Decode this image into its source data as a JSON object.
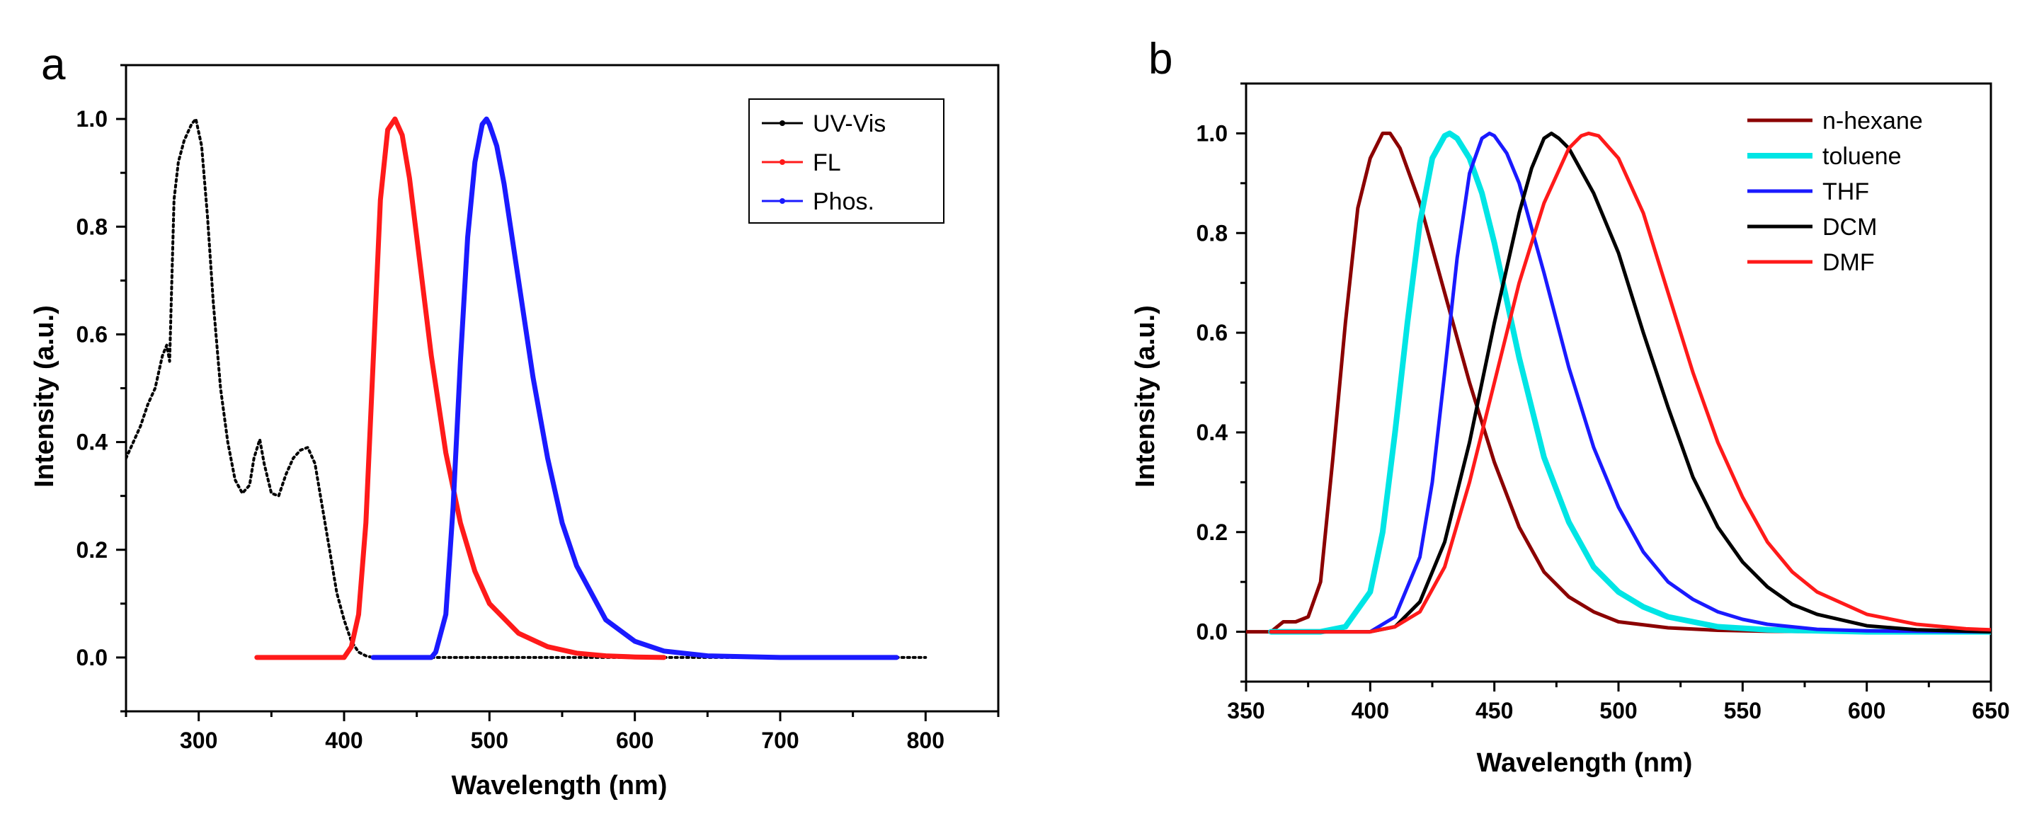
{
  "chart_data": [
    {
      "panel": "a",
      "type": "line",
      "xlabel": "Wavelength (nm)",
      "ylabel": "Intensity (a.u.)",
      "xlim": [
        250,
        850
      ],
      "ylim": [
        -0.1,
        1.1
      ],
      "xticks": [
        300,
        400,
        500,
        600,
        700,
        800
      ],
      "yticks": [
        0.0,
        0.2,
        0.4,
        0.6,
        0.8,
        1.0
      ],
      "grid": false,
      "legend_position": "top-right",
      "series": [
        {
          "name": "UV-Vis",
          "color": "#000000",
          "marker": "dot",
          "x": [
            250,
            255,
            260,
            265,
            270,
            275,
            278,
            280,
            283,
            286,
            290,
            295,
            298,
            302,
            306,
            310,
            315,
            320,
            325,
            330,
            335,
            338,
            342,
            345,
            350,
            355,
            360,
            365,
            370,
            375,
            380,
            385,
            390,
            395,
            400,
            405,
            410,
            415,
            420,
            430,
            450,
            500,
            550,
            600,
            650,
            700,
            750,
            800
          ],
          "y": [
            0.37,
            0.4,
            0.43,
            0.47,
            0.5,
            0.56,
            0.58,
            0.55,
            0.85,
            0.92,
            0.96,
            0.99,
            1.0,
            0.95,
            0.82,
            0.66,
            0.5,
            0.4,
            0.33,
            0.305,
            0.32,
            0.37,
            0.405,
            0.36,
            0.305,
            0.3,
            0.34,
            0.37,
            0.385,
            0.39,
            0.36,
            0.28,
            0.2,
            0.12,
            0.07,
            0.03,
            0.01,
            0.003,
            0.0,
            0.0,
            0.0,
            0.0,
            0.0,
            0.0,
            0.0,
            0.0,
            0.0,
            0.0
          ]
        },
        {
          "name": "FL",
          "color": "#ff1a1a",
          "marker": "dot",
          "x": [
            340,
            380,
            400,
            405,
            410,
            415,
            420,
            425,
            430,
            435,
            440,
            445,
            450,
            460,
            470,
            480,
            490,
            500,
            520,
            540,
            560,
            580,
            600,
            620
          ],
          "y": [
            0.0,
            0.0,
            0.0,
            0.02,
            0.08,
            0.25,
            0.55,
            0.85,
            0.98,
            1.0,
            0.97,
            0.89,
            0.78,
            0.56,
            0.38,
            0.25,
            0.16,
            0.1,
            0.045,
            0.02,
            0.008,
            0.003,
            0.001,
            0.0
          ]
        },
        {
          "name": "Phos.",
          "color": "#1a1aff",
          "marker": "dot",
          "x": [
            420,
            460,
            463,
            470,
            475,
            480,
            485,
            490,
            495,
            498,
            500,
            505,
            510,
            520,
            530,
            540,
            550,
            560,
            580,
            600,
            620,
            650,
            700,
            780
          ],
          "y": [
            0.0,
            0.0,
            0.01,
            0.08,
            0.28,
            0.55,
            0.78,
            0.92,
            0.99,
            1.0,
            0.99,
            0.95,
            0.88,
            0.7,
            0.52,
            0.37,
            0.25,
            0.17,
            0.07,
            0.03,
            0.012,
            0.003,
            0.0,
            0.0
          ]
        }
      ]
    },
    {
      "panel": "b",
      "type": "line",
      "xlabel": "Wavelength (nm)",
      "ylabel": "Intensity (a.u.)",
      "xlim": [
        350,
        650
      ],
      "ylim": [
        -0.1,
        1.1
      ],
      "xticks": [
        350,
        400,
        450,
        500,
        550,
        600,
        650
      ],
      "yticks": [
        0.0,
        0.2,
        0.4,
        0.6,
        0.8,
        1.0
      ],
      "grid": false,
      "legend_position": "top-right",
      "series": [
        {
          "name": "n-hexane",
          "color": "#8b0000",
          "x": [
            350,
            360,
            365,
            370,
            375,
            380,
            385,
            390,
            395,
            400,
            405,
            408,
            412,
            420,
            430,
            440,
            450,
            460,
            470,
            480,
            490,
            500,
            520,
            540,
            560,
            600,
            650
          ],
          "y": [
            0.0,
            0.0,
            0.02,
            0.02,
            0.03,
            0.1,
            0.35,
            0.62,
            0.85,
            0.95,
            1.0,
            1.0,
            0.97,
            0.86,
            0.68,
            0.5,
            0.34,
            0.21,
            0.12,
            0.07,
            0.04,
            0.02,
            0.008,
            0.003,
            0.001,
            0.0,
            0.0
          ]
        },
        {
          "name": "toluene",
          "color": "#00e5e5",
          "x": [
            360,
            380,
            390,
            400,
            405,
            410,
            415,
            420,
            425,
            430,
            432,
            435,
            440,
            445,
            450,
            460,
            470,
            480,
            490,
            500,
            510,
            520,
            540,
            560,
            600,
            650
          ],
          "y": [
            0.0,
            0.0,
            0.01,
            0.08,
            0.2,
            0.4,
            0.62,
            0.82,
            0.95,
            0.995,
            1.0,
            0.99,
            0.95,
            0.88,
            0.78,
            0.55,
            0.35,
            0.22,
            0.13,
            0.08,
            0.05,
            0.03,
            0.01,
            0.004,
            0.0,
            0.0
          ]
        },
        {
          "name": "THF",
          "color": "#1a1aff",
          "x": [
            360,
            400,
            410,
            420,
            425,
            430,
            435,
            440,
            445,
            448,
            450,
            455,
            460,
            470,
            480,
            490,
            500,
            510,
            520,
            530,
            540,
            550,
            560,
            580,
            600,
            650
          ],
          "y": [
            0.0,
            0.0,
            0.03,
            0.15,
            0.3,
            0.52,
            0.75,
            0.92,
            0.99,
            1.0,
            0.995,
            0.96,
            0.9,
            0.72,
            0.53,
            0.37,
            0.25,
            0.16,
            0.1,
            0.065,
            0.04,
            0.025,
            0.015,
            0.005,
            0.002,
            0.0
          ]
        },
        {
          "name": "DCM",
          "color": "#000000",
          "x": [
            360,
            400,
            410,
            420,
            430,
            440,
            450,
            460,
            465,
            470,
            473,
            476,
            480,
            490,
            500,
            510,
            520,
            530,
            540,
            550,
            560,
            570,
            580,
            600,
            620,
            650
          ],
          "y": [
            0.0,
            0.0,
            0.01,
            0.06,
            0.18,
            0.38,
            0.62,
            0.84,
            0.93,
            0.99,
            1.0,
            0.99,
            0.97,
            0.88,
            0.76,
            0.6,
            0.45,
            0.31,
            0.21,
            0.14,
            0.09,
            0.055,
            0.035,
            0.012,
            0.004,
            0.0
          ]
        },
        {
          "name": "DMF",
          "color": "#ff1a1a",
          "x": [
            360,
            400,
            410,
            420,
            430,
            440,
            450,
            460,
            470,
            480,
            485,
            488,
            492,
            500,
            510,
            520,
            530,
            540,
            550,
            560,
            570,
            580,
            600,
            620,
            640,
            650
          ],
          "y": [
            0.0,
            0.0,
            0.01,
            0.04,
            0.13,
            0.3,
            0.5,
            0.7,
            0.86,
            0.97,
            0.995,
            1.0,
            0.995,
            0.95,
            0.84,
            0.68,
            0.52,
            0.38,
            0.27,
            0.18,
            0.12,
            0.08,
            0.035,
            0.015,
            0.006,
            0.004
          ]
        }
      ]
    }
  ]
}
